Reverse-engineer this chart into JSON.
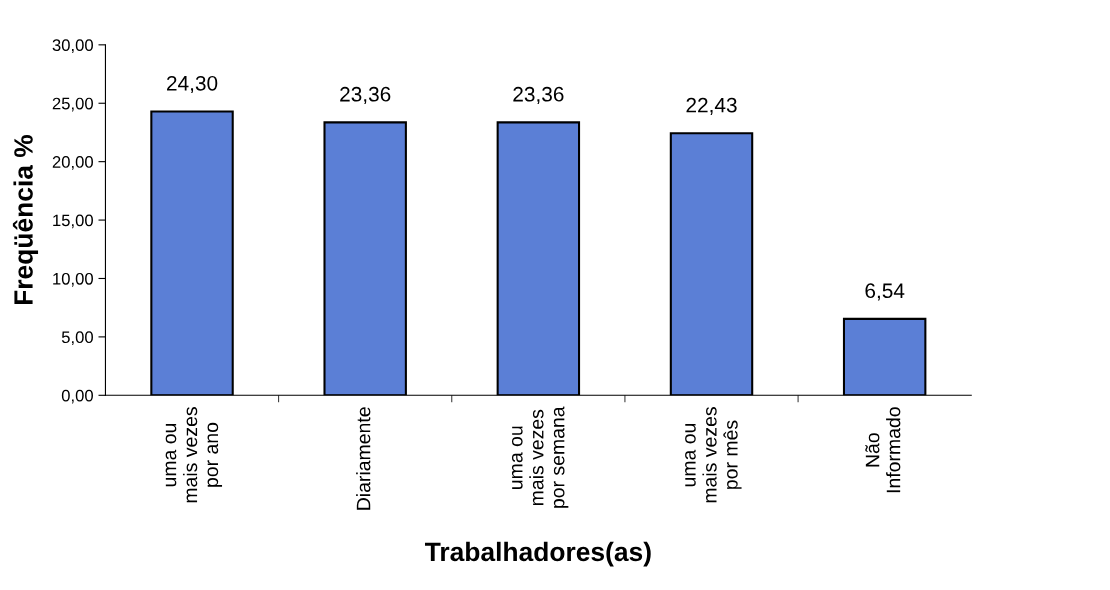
{
  "chart_data": {
    "type": "bar",
    "xlabel": "Trabalhadores(as)",
    "ylabel": "Freqüência %",
    "categories": [
      "uma ou\nmais vezes\npor ano",
      "Diariamente",
      "uma ou\nmais vezes\npor semana",
      "uma ou\nmais vezes\npor mês",
      "Não\nInformado"
    ],
    "values": [
      24.3,
      23.36,
      23.36,
      22.43,
      6.54
    ],
    "value_labels": [
      "24,30",
      "23,36",
      "23,36",
      "22,43",
      "6,54"
    ],
    "color": "#5b7fd6",
    "ylim": [
      0,
      30
    ],
    "yticks": [
      {
        "value": 0,
        "label": "0,00"
      },
      {
        "value": 5,
        "label": "5,00"
      },
      {
        "value": 10,
        "label": "10,00"
      },
      {
        "value": 15,
        "label": "15,00"
      },
      {
        "value": 20,
        "label": "20,00"
      },
      {
        "value": 25,
        "label": "25,00"
      },
      {
        "value": 30,
        "label": "30,00"
      }
    ],
    "grid": false
  }
}
